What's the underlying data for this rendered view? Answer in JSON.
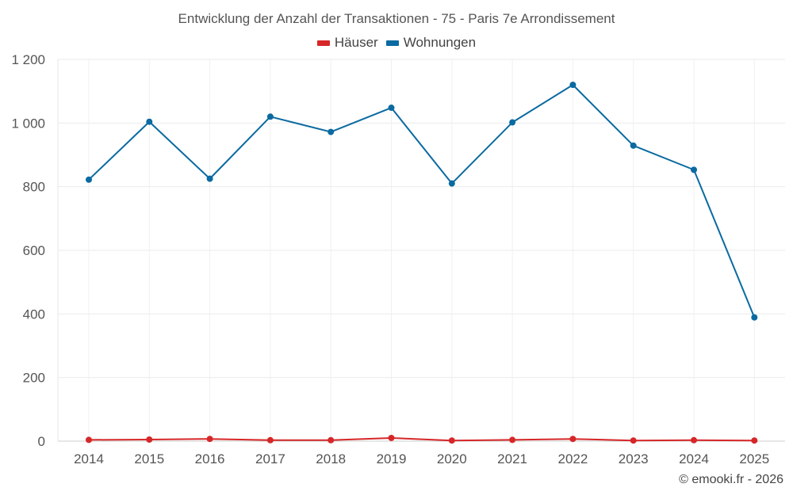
{
  "chart_data": {
    "type": "line",
    "title": "Entwicklung der Anzahl der Transaktionen - 75 - Paris 7e Arrondissement",
    "xlabel": "",
    "ylabel": "",
    "x": [
      "2014",
      "2015",
      "2016",
      "2017",
      "2018",
      "2019",
      "2020",
      "2021",
      "2022",
      "2023",
      "2024",
      "2025"
    ],
    "ylim": [
      0,
      1200
    ],
    "yticks": [
      0,
      200,
      400,
      600,
      800,
      1000,
      1200
    ],
    "ytick_labels": [
      "0",
      "200",
      "400",
      "600",
      "800",
      "1 000",
      "1 200"
    ],
    "grid": true,
    "legend_position": "top-center",
    "series": [
      {
        "name": "Häuser",
        "color": "#d62728",
        "values": [
          4,
          5,
          7,
          3,
          3,
          10,
          2,
          4,
          7,
          2,
          3,
          2
        ]
      },
      {
        "name": "Wohnungen",
        "color": "#0a6aa1",
        "values": [
          822,
          1004,
          825,
          1020,
          972,
          1048,
          810,
          1002,
          1120,
          929,
          853,
          389
        ]
      }
    ]
  },
  "watermark": "© emooki.fr - 2026"
}
